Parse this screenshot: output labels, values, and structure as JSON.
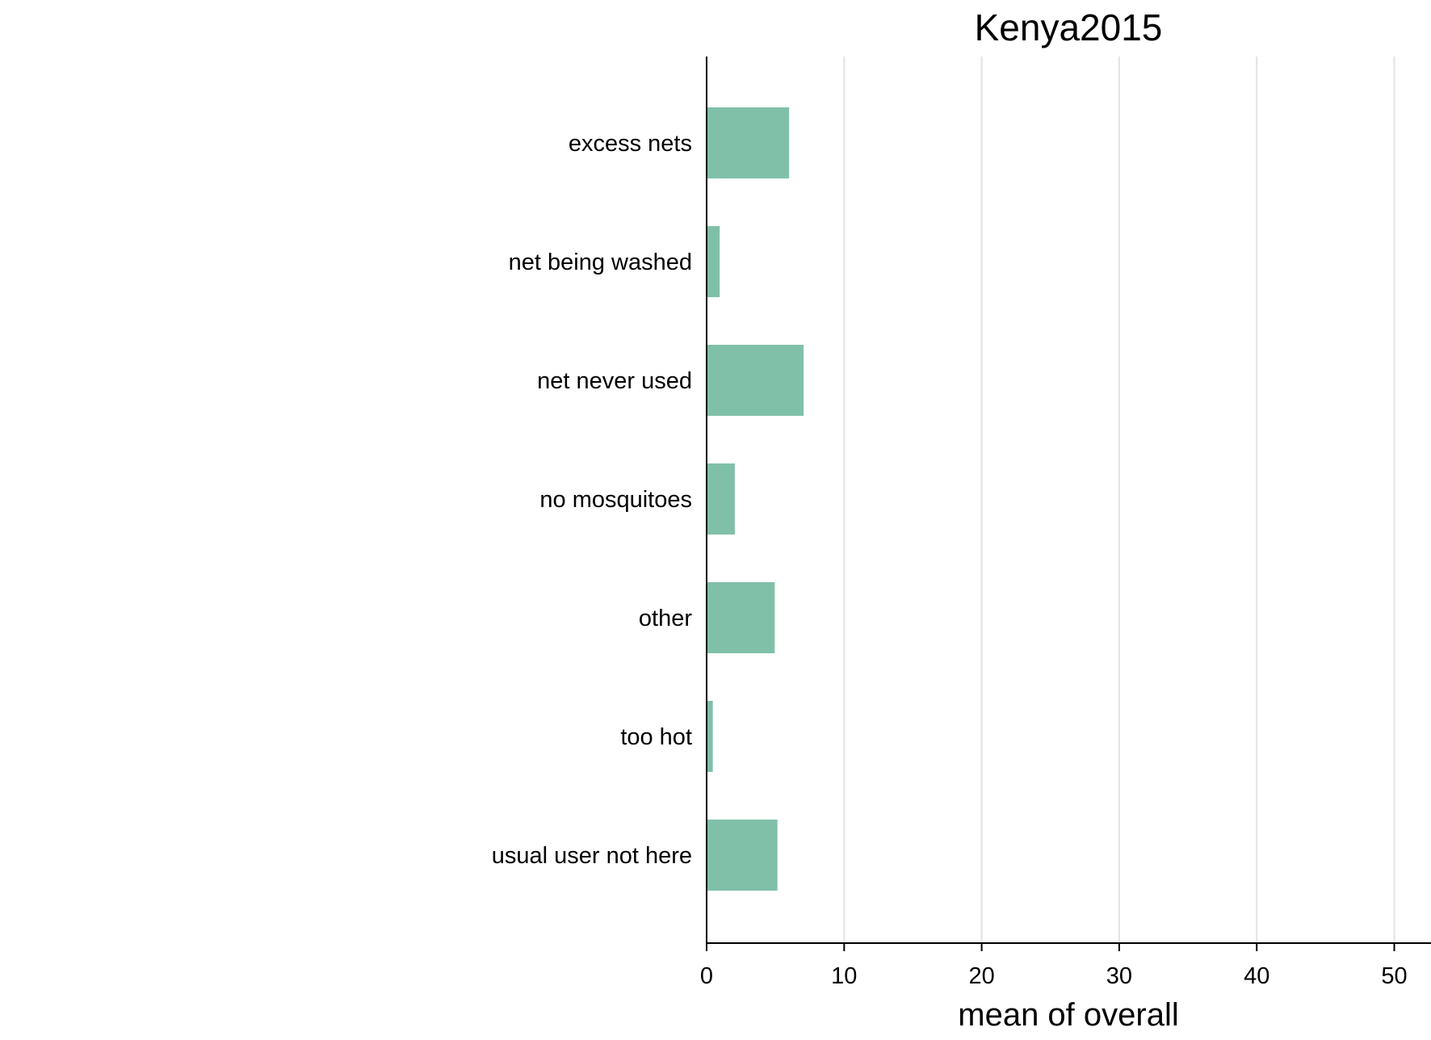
{
  "chart_data": {
    "type": "bar",
    "orientation": "horizontal",
    "title": "Kenya2015",
    "xlabel": "mean of overall",
    "ylabel": "",
    "categories": [
      "excess nets",
      "net being washed",
      "net never used",
      "no mosquitoes",
      "other",
      "too hot",
      "usual user not here"
    ],
    "values": [
      6.0,
      0.95,
      7.05,
      2.05,
      4.95,
      0.45,
      5.15
    ],
    "xlim": [
      0,
      52.5
    ],
    "xticks": [
      0,
      10,
      20,
      30,
      40,
      50
    ],
    "grid": true,
    "legend": "none",
    "bar_color": "#80c0a8",
    "grid_color": "#e3e3e3"
  }
}
